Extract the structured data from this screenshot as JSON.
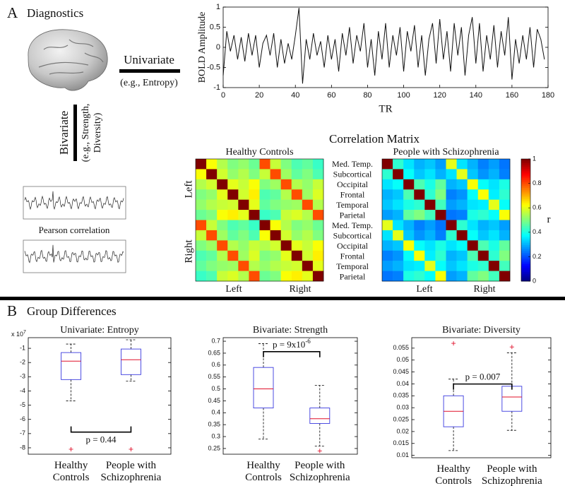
{
  "figure": {
    "panel_a": "A",
    "panel_a_title": "Diagnostics",
    "univariate": "Univariate",
    "univariate_example": "(e.g., Entropy)",
    "bivariate": "Bivariate",
    "bivariate_example": [
      "(e.g., Strength,",
      "Diversity)"
    ],
    "pearson": "Pearson correlation",
    "matrix_title": "Correlation Matrix",
    "hemispheres": [
      "Left",
      "Right"
    ],
    "region_labels": [
      "Med. Temp.",
      "Subcortical",
      "Occipital",
      "Frontal",
      "Temporal",
      "Parietal",
      "Med. Temp.",
      "Subcortical",
      "Occipital",
      "Frontal",
      "Temporal",
      "Parietal"
    ],
    "panel_b": "B",
    "panel_b_title": "Group Differences"
  },
  "chart_data": [
    {
      "type": "line",
      "xlabel": "TR",
      "ylabel": "BOLD Amplitude",
      "color": "#111111",
      "x": [
        0,
        2,
        4,
        6,
        8,
        10,
        12,
        14,
        16,
        18,
        20,
        22,
        24,
        26,
        28,
        30,
        32,
        34,
        36,
        38,
        40,
        42,
        44,
        46,
        48,
        50,
        52,
        54,
        56,
        58,
        60,
        62,
        64,
        66,
        68,
        70,
        72,
        74,
        76,
        78,
        80,
        82,
        84,
        86,
        88,
        90,
        92,
        94,
        96,
        98,
        100,
        102,
        104,
        106,
        108,
        110,
        112,
        114,
        116,
        118,
        120,
        122,
        124,
        126,
        128,
        130,
        132,
        134,
        136,
        138,
        140,
        142,
        144,
        146,
        148,
        150,
        152,
        154,
        156,
        158,
        160,
        162,
        164,
        166,
        168,
        170,
        172,
        174,
        176,
        178
      ],
      "values": [
        -0.7,
        0.4,
        -0.1,
        0.3,
        -0.3,
        0.25,
        -0.35,
        0.35,
        -0.2,
        0.3,
        -0.5,
        0.1,
        0.3,
        -0.2,
        0.35,
        -0.5,
        0.2,
        -0.4,
        0.1,
        -0.3,
        0.3,
        0.98,
        -0.9,
        0.2,
        -0.3,
        0.35,
        -0.2,
        0.15,
        -0.5,
        0.3,
        -0.3,
        0.2,
        -0.6,
        0.35,
        -0.2,
        0.5,
        -0.4,
        0.3,
        -0.1,
        0.6,
        -0.5,
        0.2,
        -0.7,
        0.4,
        -0.3,
        0.6,
        -0.5,
        0.3,
        -0.2,
        0.5,
        -0.6,
        0.4,
        -0.1,
        0.55,
        -0.5,
        0.3,
        -0.7,
        0.2,
        0.6,
        -0.4,
        0.7,
        -0.3,
        0.4,
        -0.6,
        0.6,
        -0.2,
        0.5,
        -0.7,
        0.3,
        0.75,
        -0.4,
        0.6,
        -0.6,
        0.3,
        -0.3,
        0.55,
        -0.5,
        0.4,
        -0.2,
        0.75,
        -0.8,
        0.2,
        -0.4,
        0.3,
        -0.3,
        0.5,
        -0.5,
        0.45,
        0.2,
        -0.3
      ],
      "xlim": [
        0,
        180
      ],
      "xticks": [
        0,
        20,
        40,
        60,
        80,
        100,
        120,
        140,
        160,
        180
      ],
      "ylim": [
        -1,
        1
      ],
      "yticks": [
        -1,
        -0.5,
        0,
        0.5,
        1
      ]
    },
    {
      "type": "heatmap",
      "title": "Healthy Controls",
      "clim": [
        0,
        1
      ],
      "values": [
        [
          1,
          0.62,
          0.55,
          0.5,
          0.52,
          0.48,
          0.8,
          0.57,
          0.5,
          0.45,
          0.47,
          0.43
        ],
        [
          0.62,
          1,
          0.58,
          0.52,
          0.55,
          0.5,
          0.57,
          0.8,
          0.53,
          0.47,
          0.5,
          0.45
        ],
        [
          0.55,
          0.58,
          1,
          0.6,
          0.57,
          0.62,
          0.5,
          0.53,
          0.8,
          0.55,
          0.52,
          0.57
        ],
        [
          0.5,
          0.52,
          0.6,
          1,
          0.58,
          0.64,
          0.45,
          0.47,
          0.55,
          0.8,
          0.53,
          0.59
        ],
        [
          0.52,
          0.55,
          0.57,
          0.58,
          1,
          0.6,
          0.47,
          0.5,
          0.52,
          0.53,
          0.8,
          0.55
        ],
        [
          0.48,
          0.5,
          0.62,
          0.64,
          0.6,
          1,
          0.43,
          0.45,
          0.57,
          0.59,
          0.55,
          0.8
        ],
        [
          0.8,
          0.57,
          0.5,
          0.45,
          0.47,
          0.43,
          1,
          0.62,
          0.55,
          0.5,
          0.52,
          0.48
        ],
        [
          0.57,
          0.8,
          0.53,
          0.47,
          0.5,
          0.45,
          0.62,
          1,
          0.58,
          0.52,
          0.55,
          0.5
        ],
        [
          0.5,
          0.53,
          0.8,
          0.55,
          0.52,
          0.57,
          0.55,
          0.58,
          1,
          0.6,
          0.57,
          0.62
        ],
        [
          0.45,
          0.47,
          0.55,
          0.8,
          0.53,
          0.59,
          0.5,
          0.52,
          0.6,
          1,
          0.58,
          0.64
        ],
        [
          0.47,
          0.5,
          0.52,
          0.53,
          0.8,
          0.55,
          0.52,
          0.55,
          0.57,
          0.58,
          1,
          0.6
        ],
        [
          0.43,
          0.45,
          0.57,
          0.59,
          0.55,
          0.8,
          0.48,
          0.5,
          0.62,
          0.64,
          0.6,
          1
        ]
      ]
    },
    {
      "type": "heatmap",
      "title": "People with Schizophrenia",
      "clim": [
        0,
        1
      ],
      "colorbar_ticks": [
        0,
        0.2,
        0.4,
        0.6,
        0.8,
        1
      ],
      "colorbar_label": "r",
      "values": [
        [
          1,
          0.42,
          0.35,
          0.3,
          0.32,
          0.28,
          0.6,
          0.35,
          0.3,
          0.25,
          0.28,
          0.24
        ],
        [
          0.42,
          1,
          0.38,
          0.32,
          0.35,
          0.3,
          0.35,
          0.6,
          0.32,
          0.27,
          0.3,
          0.25
        ],
        [
          0.35,
          0.38,
          1,
          0.45,
          0.4,
          0.47,
          0.3,
          0.32,
          0.62,
          0.38,
          0.35,
          0.4
        ],
        [
          0.3,
          0.32,
          0.45,
          1,
          0.42,
          0.5,
          0.25,
          0.27,
          0.38,
          0.62,
          0.36,
          0.42
        ],
        [
          0.32,
          0.35,
          0.4,
          0.42,
          1,
          0.44,
          0.28,
          0.3,
          0.35,
          0.36,
          0.6,
          0.38
        ],
        [
          0.28,
          0.3,
          0.47,
          0.5,
          0.44,
          1,
          0.24,
          0.25,
          0.4,
          0.42,
          0.38,
          0.62
        ],
        [
          0.6,
          0.35,
          0.3,
          0.25,
          0.28,
          0.24,
          1,
          0.42,
          0.35,
          0.3,
          0.32,
          0.28
        ],
        [
          0.35,
          0.6,
          0.32,
          0.27,
          0.3,
          0.25,
          0.42,
          1,
          0.38,
          0.32,
          0.35,
          0.3
        ],
        [
          0.3,
          0.32,
          0.62,
          0.38,
          0.35,
          0.4,
          0.35,
          0.38,
          1,
          0.45,
          0.4,
          0.47
        ],
        [
          0.25,
          0.27,
          0.38,
          0.62,
          0.36,
          0.42,
          0.3,
          0.32,
          0.45,
          1,
          0.42,
          0.5
        ],
        [
          0.28,
          0.3,
          0.35,
          0.36,
          0.6,
          0.38,
          0.32,
          0.35,
          0.4,
          0.42,
          1,
          0.44
        ],
        [
          0.24,
          0.25,
          0.4,
          0.42,
          0.38,
          0.62,
          0.28,
          0.3,
          0.47,
          0.5,
          0.44,
          1
        ]
      ]
    },
    {
      "type": "box",
      "title": "Univariate: Entropy",
      "scale_label": "x 10",
      "scale_exponent": "7",
      "categories": [
        "Healthy Controls",
        "People with Schizophrenia"
      ],
      "boxes": [
        {
          "whisker_low": -4.7,
          "q1": -3.2,
          "median": -1.9,
          "q3": -1.3,
          "whisker_high": -0.7,
          "outliers": [
            -8.1
          ]
        },
        {
          "whisker_low": -3.3,
          "q1": -2.85,
          "median": -1.8,
          "q3": -1.05,
          "whisker_high": -0.4,
          "outliers": [
            -8.1
          ]
        }
      ],
      "annotation": "p = 0.44",
      "ylim": [
        -8.45,
        -0.25
      ],
      "yticks": [
        -8,
        -7,
        -6,
        -5,
        -4,
        -3,
        -2,
        -1
      ]
    },
    {
      "type": "box",
      "title": "Bivariate: Strength",
      "categories": [
        "Healthy Controls",
        "People with Schizophrenia"
      ],
      "boxes": [
        {
          "whisker_low": 0.29,
          "q1": 0.42,
          "median": 0.5,
          "q3": 0.59,
          "whisker_high": 0.69,
          "outliers": []
        },
        {
          "whisker_low": 0.26,
          "q1": 0.355,
          "median": 0.375,
          "q3": 0.42,
          "whisker_high": 0.515,
          "outliers": [
            0.24
          ]
        }
      ],
      "annotation": "p = 9x10",
      "annotation_exponent": "-6",
      "ylim": [
        0.226,
        0.715
      ],
      "yticks": [
        0.25,
        0.3,
        0.35,
        0.4,
        0.45,
        0.5,
        0.55,
        0.6,
        0.65,
        0.7
      ]
    },
    {
      "type": "box",
      "title": "Bivariate: Diversity",
      "categories": [
        "Healthy Controls",
        "People with Schizophrenia"
      ],
      "boxes": [
        {
          "whisker_low": 0.012,
          "q1": 0.022,
          "median": 0.0285,
          "q3": 0.035,
          "whisker_high": 0.042,
          "outliers": [
            0.057
          ]
        },
        {
          "whisker_low": 0.0205,
          "q1": 0.0285,
          "median": 0.0345,
          "q3": 0.039,
          "whisker_high": 0.053,
          "outliers": [
            0.0555
          ]
        }
      ],
      "annotation": "p = 0.007",
      "ylim": [
        0.009,
        0.0594
      ],
      "yticks": [
        0.01,
        0.015,
        0.02,
        0.025,
        0.03,
        0.035,
        0.04,
        0.045,
        0.05,
        0.055
      ]
    }
  ]
}
